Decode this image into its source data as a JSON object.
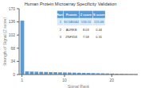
{
  "chart_data": {
    "type": "bar",
    "title": "Human Protein Microarray Specificity Validation",
    "xlabel": "Signal Rank",
    "ylabel": "Strength of Signal (Z score)",
    "x": [
      1,
      2,
      3,
      4,
      5,
      6,
      7,
      8,
      9,
      10,
      11,
      12,
      13,
      14,
      15,
      16,
      17,
      18,
      19,
      20,
      21,
      22,
      23,
      24,
      25
    ],
    "values": [
      139.12,
      8.03,
      7.58,
      7.2,
      6.9,
      6.6,
      6.3,
      6.0,
      5.7,
      5.4,
      5.1,
      4.8,
      4.5,
      4.2,
      3.9,
      3.6,
      3.3,
      3.0,
      2.7,
      2.4,
      2.1,
      1.8,
      1.5,
      1.2,
      0.9
    ],
    "color": "#5b9bd5",
    "xlim": [
      0.4,
      25.5
    ],
    "xticks": [
      1,
      10,
      20
    ],
    "ylim": [
      0,
      170
    ],
    "yticks": [
      0,
      34,
      68,
      102,
      136,
      170
    ],
    "grid": false,
    "table": [
      [
        "Rank",
        "Protein",
        "Z score",
        "S score"
      ],
      [
        "1",
        "SCGB2A2",
        "139.12",
        "131.08"
      ],
      [
        "2",
        "AURKB",
        "8.03",
        "0.44"
      ],
      [
        "3",
        "ZNF358",
        "7.58",
        "0.31"
      ]
    ]
  }
}
